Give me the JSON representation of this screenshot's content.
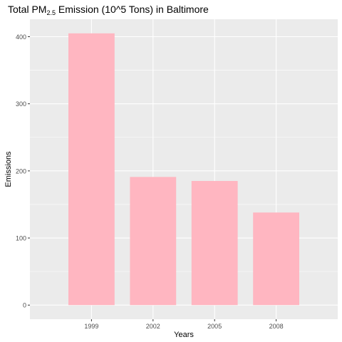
{
  "chart_data": {
    "type": "bar",
    "title": {
      "prefix": "Total PM",
      "subscript": "2.5",
      "suffix": " Emission (10^5 Tons) in Baltimore"
    },
    "xlabel": "Years",
    "ylabel": "Emissions",
    "categories": [
      "1999",
      "2002",
      "2005",
      "2008"
    ],
    "values": [
      405,
      191,
      185,
      138
    ],
    "ylim": [
      -21,
      426
    ],
    "yticks": [
      0,
      100,
      200,
      300,
      400
    ],
    "grid": true,
    "bar_color": "#FFB6C1",
    "panel_color": "#EBEBEB",
    "grid_color": "#FFFFFF"
  }
}
